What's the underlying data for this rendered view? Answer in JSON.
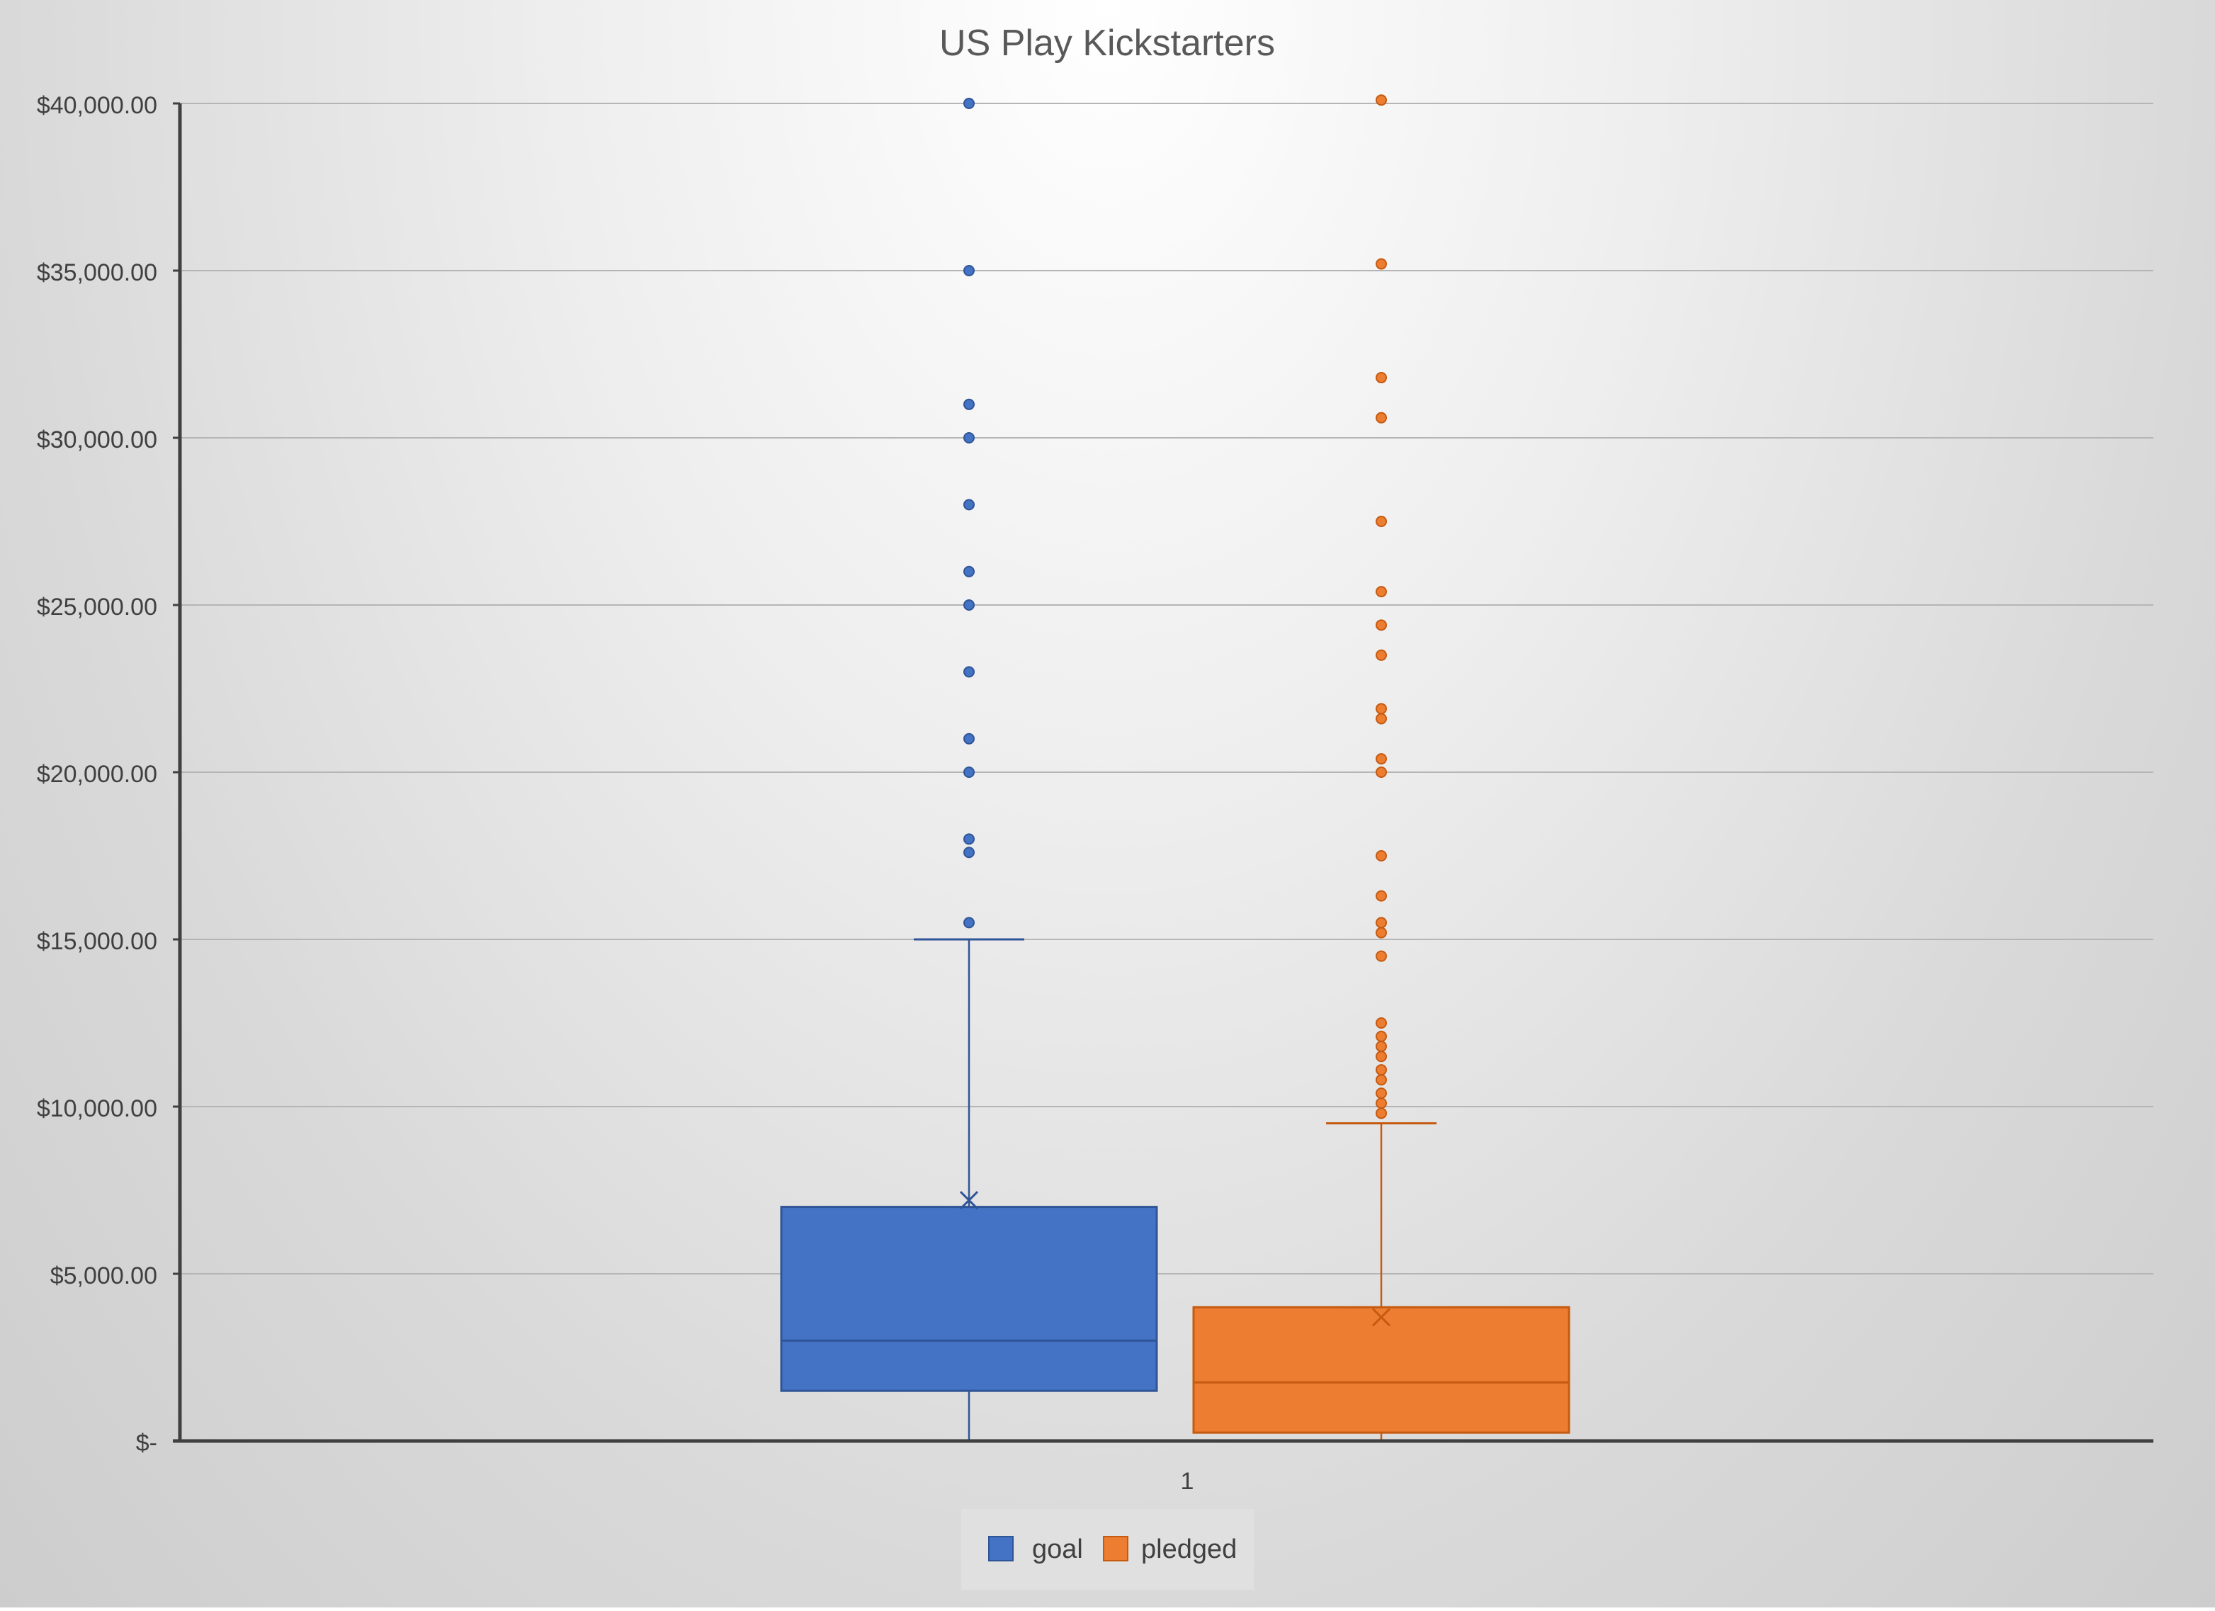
{
  "chart_data": {
    "type": "box",
    "title": "US Play Kickstarters",
    "categories": [
      "1"
    ],
    "y_ticks": [
      "$-",
      "$5,000.00",
      "$10,000.00",
      "$15,000.00",
      "$20,000.00",
      "$25,000.00",
      "$30,000.00",
      "$35,000.00",
      "$40,000.00"
    ],
    "y_tick_values": [
      0,
      5000,
      10000,
      15000,
      20000,
      25000,
      30000,
      35000,
      40000
    ],
    "ylim": [
      0,
      40000
    ],
    "grid": true,
    "legend_position": "bottom",
    "series": [
      {
        "name": "goal",
        "color": "#4472C4",
        "whisker_low": 0,
        "q1": 1500,
        "median": 3000,
        "q3": 7000,
        "whisker_high": 15000,
        "mean": 7200,
        "outliers": [
          15500,
          17600,
          18000,
          20000,
          21000,
          23000,
          25000,
          26000,
          28000,
          30000,
          31000,
          35000,
          40000
        ]
      },
      {
        "name": "pledged",
        "color": "#ED7D31",
        "whisker_low": 0,
        "q1": 250,
        "median": 1750,
        "q3": 4000,
        "whisker_high": 9500,
        "mean": 3700,
        "outliers": [
          9800,
          10100,
          10400,
          10800,
          11100,
          11500,
          11800,
          12100,
          12500,
          14500,
          15200,
          15500,
          16300,
          17500,
          20000,
          20400,
          21600,
          21900,
          23500,
          24400,
          25400,
          27500,
          30600,
          31800,
          35200,
          40100
        ]
      }
    ]
  }
}
